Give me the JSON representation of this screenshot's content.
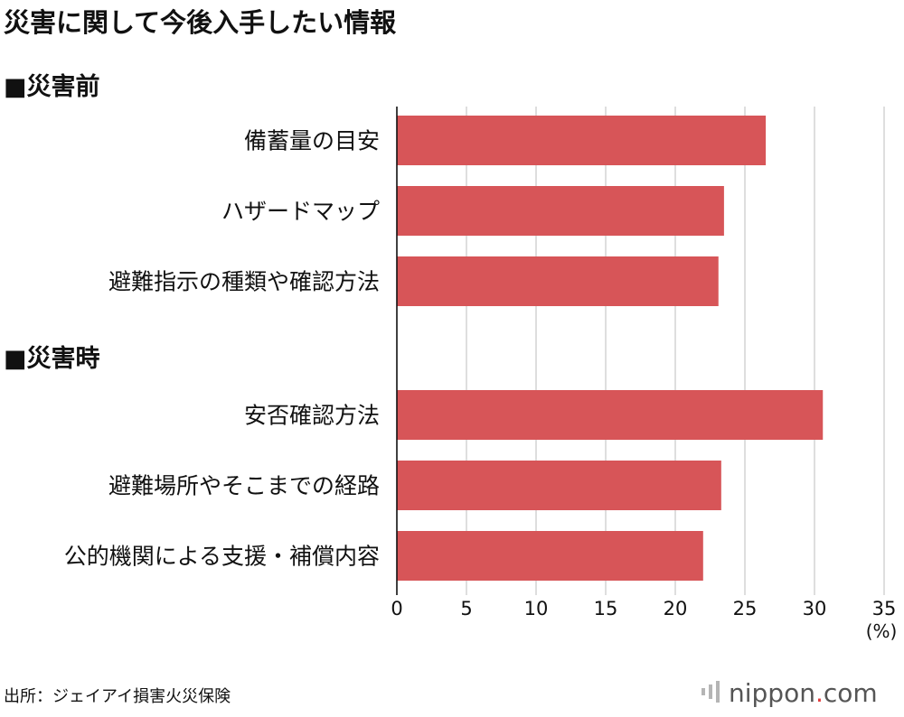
{
  "chart_data": {
    "type": "bar",
    "orientation": "horizontal",
    "title": "災害に関して今後入手したい情報",
    "groups": [
      {
        "label": "■災害前",
        "categories": [
          "備蓄量の目安",
          "ハザードマップ",
          "避難指示の種類や確認方法"
        ],
        "values": [
          26.5,
          23.5,
          23.1
        ]
      },
      {
        "label": "■災害時",
        "categories": [
          "安否確認方法",
          "避難場所やそこまでの経路",
          "公的機関による支援・補償内容"
        ],
        "values": [
          30.6,
          23.3,
          22.0
        ]
      }
    ],
    "xlim": [
      0,
      35
    ],
    "xticks": [
      0,
      5,
      10,
      15,
      20,
      25,
      30,
      35
    ],
    "unit": "(%)",
    "grid": true,
    "bar_color": "#d75558",
    "grid_color": "#c8c8c8"
  },
  "source": "出所：ジェイアイ損害火災保険",
  "logo": {
    "text_main": "nippon",
    "text_dot": ".",
    "text_tail": "com",
    "dot_color": "#e23b3b"
  }
}
